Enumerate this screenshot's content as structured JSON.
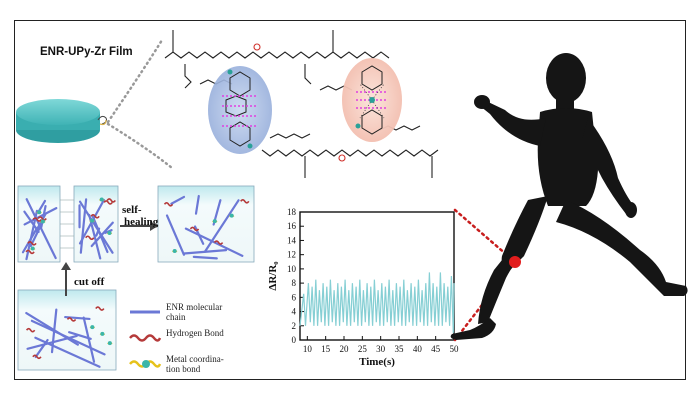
{
  "figure": {
    "film_title": "ENR-UPy-Zr Film",
    "process": {
      "self_healing_label": "self-\nhealing",
      "cut_off_label": "cut off"
    },
    "legend": [
      {
        "label": "ENR molecular\nchain",
        "color": "#6b78d6",
        "style": "straight"
      },
      {
        "label": "Hydrogen Bond",
        "color": "#b53a3a",
        "style": "wavy"
      },
      {
        "label": "Metal coordina-\ntion bond",
        "color": "#e6c21a",
        "style": "wavy-dot"
      }
    ],
    "colors": {
      "film": "#5fc7c8",
      "chain": "#6b78d6",
      "hbond": "#b53a3a",
      "metal": "#e6c21a",
      "pink": "#e040e0",
      "signal": "#86cfd4",
      "connector": "#c81e1e",
      "silhouette": "#151515"
    }
  },
  "chart_data": {
    "type": "line",
    "title": "",
    "xlabel": "Time(s)",
    "ylabel": "ΔR/R₀",
    "xlim": [
      8,
      50
    ],
    "ylim": [
      0,
      18
    ],
    "xticks": [
      10,
      15,
      20,
      25,
      30,
      35,
      40,
      45,
      50
    ],
    "yticks": [
      0,
      2,
      4,
      6,
      8,
      10,
      12,
      14,
      16,
      18
    ],
    "grid": false,
    "series": [
      {
        "x": [
          8.0,
          9.0,
          9.5,
          10.3,
          10.8,
          11.3,
          11.8,
          12.3,
          12.8,
          13.3,
          13.8,
          14.3,
          14.8,
          15.3,
          15.8,
          16.3,
          16.8,
          17.3,
          17.8,
          18.3,
          18.8,
          19.3,
          19.8,
          20.3,
          20.8,
          21.3,
          21.8,
          22.3,
          22.8,
          23.3,
          23.8,
          24.3,
          24.8,
          25.3,
          25.8,
          26.3,
          26.8,
          27.3,
          27.8,
          28.3,
          28.8,
          29.3,
          29.8,
          30.3,
          30.8,
          31.3,
          31.8,
          32.3,
          32.8,
          33.3,
          33.8,
          34.3,
          34.8,
          35.3,
          35.8,
          36.3,
          36.8,
          37.3,
          37.8,
          38.3,
          38.8,
          39.3,
          39.8,
          40.3,
          40.8,
          41.3,
          41.8,
          42.3,
          42.8,
          43.3,
          43.8,
          44.3,
          44.8,
          45.3,
          45.8,
          46.3,
          46.8,
          47.3,
          47.8,
          48.3,
          48.8,
          49.3,
          49.8,
          50.0
        ],
        "values": [
          2.0,
          6.5,
          2.0,
          8.0,
          2.5,
          7.5,
          2.0,
          8.5,
          2.0,
          7.0,
          2.5,
          8.0,
          2.0,
          7.5,
          2.0,
          8.5,
          2.5,
          7.0,
          2.0,
          8.0,
          2.0,
          7.5,
          2.5,
          8.5,
          2.0,
          7.0,
          2.0,
          8.0,
          2.5,
          7.5,
          2.0,
          8.5,
          2.0,
          7.0,
          2.5,
          8.0,
          2.0,
          7.5,
          2.0,
          8.5,
          2.5,
          7.0,
          2.0,
          8.0,
          2.0,
          7.5,
          2.5,
          8.5,
          2.0,
          7.0,
          2.0,
          8.0,
          2.5,
          7.5,
          2.0,
          8.5,
          2.0,
          7.0,
          2.5,
          8.0,
          2.0,
          7.5,
          2.0,
          8.5,
          2.5,
          7.0,
          2.0,
          8.0,
          2.0,
          9.5,
          2.5,
          8.0,
          2.0,
          7.5,
          2.0,
          9.5,
          2.0,
          8.0,
          2.5,
          7.5,
          2.0,
          9.0,
          1.0,
          8.0
        ]
      }
    ]
  }
}
